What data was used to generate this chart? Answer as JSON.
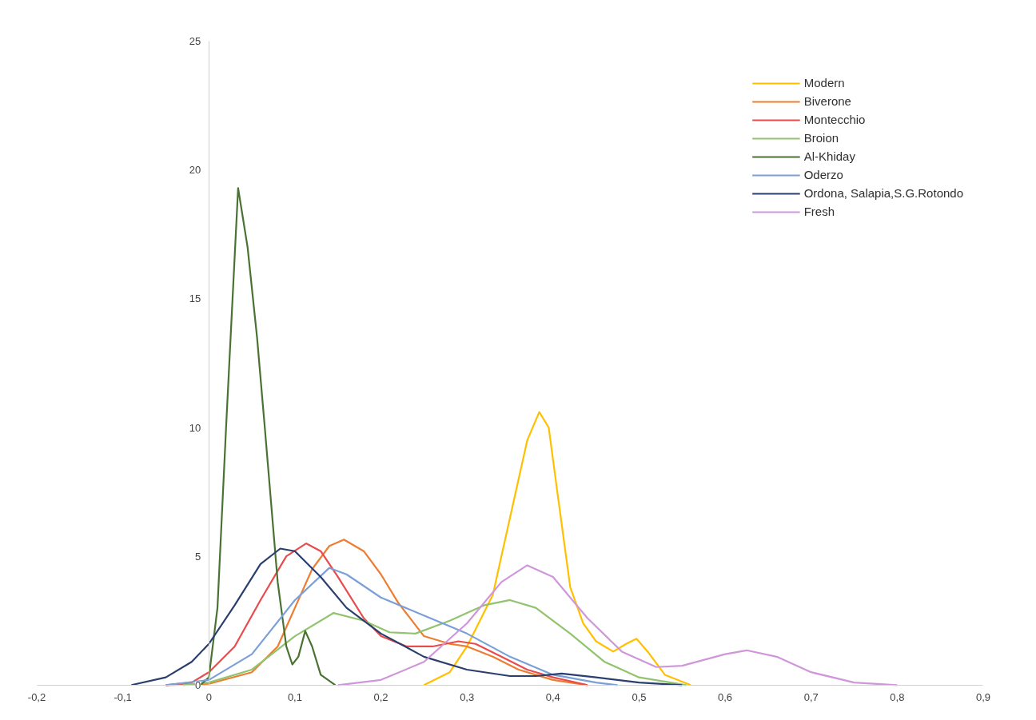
{
  "chart_data": {
    "type": "line",
    "xlim": [
      -0.2,
      0.9
    ],
    "ylim": [
      0,
      25
    ],
    "xticks": [
      {
        "value": -0.2,
        "label": "-0,2"
      },
      {
        "value": -0.1,
        "label": "-0,1"
      },
      0,
      {
        "value": 0.1,
        "label": "0,1"
      },
      {
        "value": 0.2,
        "label": "0,2"
      },
      {
        "value": 0.3,
        "label": "0,3"
      },
      {
        "value": 0.4,
        "label": "0,4"
      },
      {
        "value": 0.5,
        "label": "0,5"
      },
      {
        "value": 0.6,
        "label": "0,6"
      },
      {
        "value": 0.7,
        "label": "0,7"
      },
      {
        "value": 0.8,
        "label": "0,8"
      },
      {
        "value": 0.9,
        "label": "0,9"
      }
    ],
    "yticks": [
      0,
      5,
      10,
      15,
      20,
      25
    ],
    "grid": false,
    "legend": "top right",
    "marker": "none",
    "line_style": "solid",
    "series": [
      {
        "name": "Modern",
        "color": "#ffc000",
        "x": [
          0.25,
          0.28,
          0.3,
          0.33,
          0.35,
          0.37,
          0.384,
          0.395,
          0.405,
          0.42,
          0.435,
          0.45,
          0.47,
          0.485,
          0.497,
          0.51,
          0.53,
          0.56
        ],
        "values": [
          0,
          0.5,
          1.5,
          3.5,
          6.5,
          9.5,
          10.6,
          10,
          7.5,
          3.8,
          2.4,
          1.7,
          1.3,
          1.6,
          1.8,
          1.3,
          0.4,
          0
        ]
      },
      {
        "name": "Biverone",
        "color": "#ed7d31",
        "x": [
          -0.05,
          0,
          0.05,
          0.08,
          0.1,
          0.12,
          0.14,
          0.157,
          0.18,
          0.2,
          0.22,
          0.25,
          0.28,
          0.3,
          0.33,
          0.36,
          0.4,
          0.44
        ],
        "values": [
          0,
          0.05,
          0.5,
          1.5,
          3,
          4.5,
          5.4,
          5.65,
          5.2,
          4.3,
          3.2,
          1.9,
          1.6,
          1.5,
          1.1,
          0.6,
          0.2,
          0
        ]
      },
      {
        "name": "Montecchio",
        "color": "#e84c4c",
        "x": [
          -0.05,
          -0.02,
          0,
          0.03,
          0.06,
          0.09,
          0.113,
          0.13,
          0.15,
          0.18,
          0.2,
          0.23,
          0.26,
          0.29,
          0.31,
          0.34,
          0.37,
          0.4,
          0.44
        ],
        "values": [
          0,
          0.1,
          0.5,
          1.5,
          3.3,
          5,
          5.5,
          5.2,
          4.2,
          2.6,
          1.9,
          1.5,
          1.5,
          1.7,
          1.6,
          1.1,
          0.6,
          0.3,
          0
        ]
      },
      {
        "name": "Broion",
        "color": "#92c36e",
        "x": [
          -0.03,
          0,
          0.05,
          0.1,
          0.145,
          0.18,
          0.21,
          0.24,
          0.28,
          0.32,
          0.35,
          0.38,
          0.42,
          0.46,
          0.5,
          0.555
        ],
        "values": [
          0,
          0.1,
          0.6,
          1.9,
          2.8,
          2.5,
          2.05,
          2,
          2.5,
          3.1,
          3.3,
          3,
          2,
          0.9,
          0.3,
          0
        ]
      },
      {
        "name": "Al-Khiday",
        "color": "#4a7333",
        "x": [
          -0.01,
          0,
          0.01,
          0.02,
          0.034,
          0.045,
          0.056,
          0.065,
          0.08,
          0.09,
          0.097,
          0.104,
          0.112,
          0.12,
          0.13,
          0.147
        ],
        "values": [
          0,
          0.3,
          3,
          10,
          19.3,
          17,
          13.5,
          10,
          4,
          1.5,
          0.8,
          1.1,
          2.1,
          1.5,
          0.4,
          0
        ]
      },
      {
        "name": "Oderzo",
        "color": "#7b9fd8",
        "x": [
          -0.05,
          0,
          0.05,
          0.1,
          0.14,
          0.16,
          0.2,
          0.25,
          0.3,
          0.35,
          0.4,
          0.45,
          0.475
        ],
        "values": [
          0,
          0.2,
          1.2,
          3.3,
          4.55,
          4.3,
          3.4,
          2.7,
          2,
          1.1,
          0.4,
          0.1,
          0
        ]
      },
      {
        "name": "Ordona, Salapia,S.G.Rotondo",
        "color": "#2a3f6e",
        "x": [
          -0.09,
          -0.05,
          -0.02,
          0,
          0.03,
          0.06,
          0.083,
          0.1,
          0.13,
          0.16,
          0.2,
          0.25,
          0.3,
          0.35,
          0.38,
          0.41,
          0.45,
          0.5,
          0.55
        ],
        "values": [
          0,
          0.3,
          0.9,
          1.6,
          3.1,
          4.7,
          5.3,
          5.2,
          4.2,
          3,
          2,
          1.1,
          0.6,
          0.35,
          0.35,
          0.45,
          0.3,
          0.1,
          0
        ]
      },
      {
        "name": "Fresh",
        "color": "#cf97da",
        "x": [
          0.15,
          0.2,
          0.25,
          0.3,
          0.34,
          0.37,
          0.4,
          0.44,
          0.48,
          0.52,
          0.55,
          0.6,
          0.625,
          0.66,
          0.7,
          0.75,
          0.8
        ],
        "values": [
          0,
          0.2,
          0.9,
          2.4,
          4,
          4.65,
          4.2,
          2.6,
          1.3,
          0.7,
          0.75,
          1.2,
          1.35,
          1.1,
          0.5,
          0.1,
          0
        ]
      }
    ]
  }
}
